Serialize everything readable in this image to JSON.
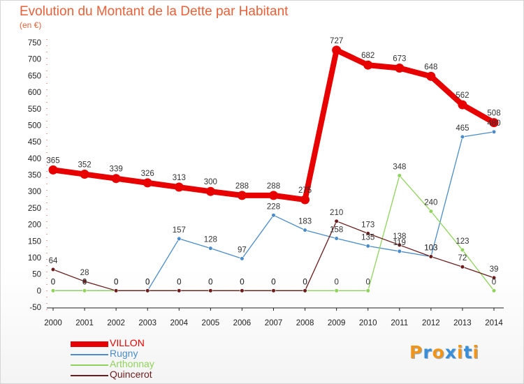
{
  "title": "Evolution du Montant de la Dette par Habitant",
  "unit_label": "(en €)",
  "logo": {
    "text": "Proxiti",
    "colors": [
      "#f29418",
      "#3a8ed8",
      "#f29418",
      "#3a8ed8",
      "#f29418",
      "#3a8ed8",
      "#f29418"
    ]
  },
  "chart_data": {
    "type": "line",
    "title": "Evolution du Montant de la Dette par Habitant",
    "ylabel": "(en €)",
    "xlabel": "",
    "x": [
      "2000",
      "2001",
      "2002",
      "2003",
      "2004",
      "2005",
      "2006",
      "2007",
      "2008",
      "2009",
      "2010",
      "2011",
      "2012",
      "2013",
      "2014"
    ],
    "ylim": [
      -50,
      750
    ],
    "yticks": [
      -50,
      0,
      50,
      100,
      150,
      200,
      250,
      300,
      350,
      400,
      450,
      500,
      550,
      600,
      650,
      700,
      750
    ],
    "grid": false,
    "legend_position": "bottom-left",
    "series": [
      {
        "name": "VILLON",
        "color": "#e80000",
        "values": [
          365,
          352,
          339,
          326,
          313,
          300,
          288,
          288,
          275,
          727,
          682,
          673,
          648,
          562,
          508
        ],
        "labels": [
          "365",
          "352",
          "339",
          "326",
          "313",
          "300",
          "288",
          "288",
          "275",
          "727",
          "682",
          "673",
          "648",
          "562",
          "508"
        ]
      },
      {
        "name": "Rugny",
        "color": "#4a8cc9",
        "values": [
          0,
          0,
          0,
          0,
          157,
          128,
          97,
          228,
          183,
          158,
          135,
          119,
          103,
          465,
          480
        ],
        "labels": [
          "0",
          "0",
          "0",
          "0",
          "157",
          "128",
          "97",
          "228",
          "183",
          "158",
          "135",
          "119",
          "103",
          "465",
          "480"
        ]
      },
      {
        "name": "Arthonnay",
        "color": "#8fd35b",
        "values": [
          0,
          0,
          0,
          0,
          0,
          0,
          0,
          0,
          0,
          0,
          0,
          348,
          240,
          123,
          0
        ],
        "labels": [
          "0",
          "0",
          "0",
          "0",
          "0",
          "0",
          "0",
          "0",
          "0",
          "0",
          "0",
          "348",
          "240",
          "123",
          "0"
        ]
      },
      {
        "name": "Quincerot",
        "color": "#6b1c1c",
        "values": [
          64,
          28,
          0,
          0,
          0,
          0,
          0,
          0,
          0,
          210,
          173,
          138,
          103,
          72,
          39
        ],
        "labels": [
          "64",
          "28",
          "0",
          "0",
          "0",
          "0",
          "0",
          "0",
          "0",
          "210",
          "173",
          "138",
          "103",
          "72",
          "39"
        ]
      }
    ]
  }
}
